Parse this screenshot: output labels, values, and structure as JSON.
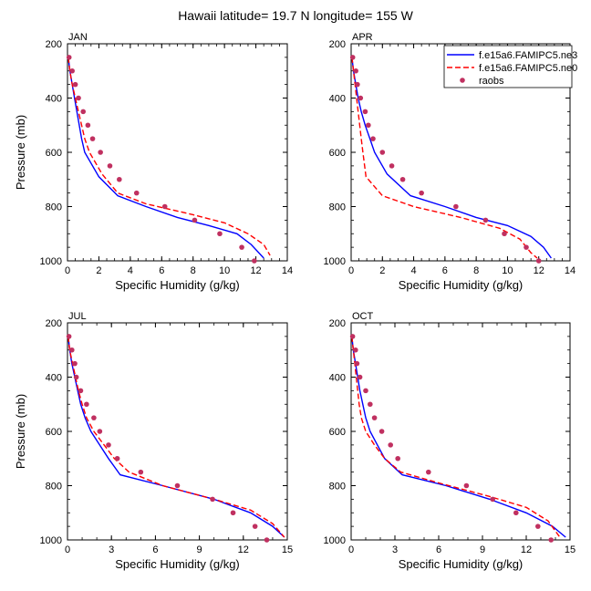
{
  "figure": {
    "title": "Hawaii  latitude= 19.7 N longitude= 155 W"
  },
  "legend": {
    "items": [
      {
        "label": "f.e15a6.FAMIPC5.ne3",
        "color": "#0000ff",
        "style": "solid"
      },
      {
        "label": "f.e15a6.FAMIPC5.ne0",
        "color": "#ff0000",
        "style": "dashed"
      },
      {
        "label": "raobs",
        "color": "#c03060",
        "style": "dot"
      }
    ]
  },
  "colors": {
    "ne3": "#0000ff",
    "ne0": "#ff0000",
    "raobs": "#c03060"
  },
  "chart_data": [
    {
      "type": "line",
      "panel": "JAN",
      "xlabel": "Specific Humidity (g/kg)",
      "ylabel": "Pressure (mb)",
      "xlim": [
        0,
        14
      ],
      "ylim": [
        200,
        1000
      ],
      "y_reversed": true,
      "xticks": [
        0,
        2,
        4,
        6,
        8,
        10,
        12,
        14
      ],
      "yticks": [
        200,
        400,
        600,
        800,
        1000
      ],
      "series": [
        {
          "name": "f.e15a6.FAMIPC5.ne3",
          "points": [
            [
              0.05,
              250
            ],
            [
              0.15,
              300
            ],
            [
              0.3,
              350
            ],
            [
              0.45,
              400
            ],
            [
              0.6,
              450
            ],
            [
              0.75,
              500
            ],
            [
              0.9,
              550
            ],
            [
              1.1,
              600
            ],
            [
              2,
              690
            ],
            [
              3.2,
              760
            ],
            [
              5,
              800
            ],
            [
              7,
              840
            ],
            [
              9,
              870
            ],
            [
              10.8,
              900
            ],
            [
              11.7,
              940
            ],
            [
              12.5,
              990
            ]
          ]
        },
        {
          "name": "f.e15a6.FAMIPC5.ne0",
          "points": [
            [
              0.05,
              250
            ],
            [
              0.15,
              300
            ],
            [
              0.3,
              350
            ],
            [
              0.5,
              400
            ],
            [
              0.7,
              450
            ],
            [
              0.9,
              500
            ],
            [
              1.1,
              550
            ],
            [
              1.4,
              600
            ],
            [
              2.2,
              680
            ],
            [
              3.2,
              750
            ],
            [
              5,
              790
            ],
            [
              8,
              830
            ],
            [
              10,
              860
            ],
            [
              11.5,
              900
            ],
            [
              12.5,
              940
            ],
            [
              12.9,
              980
            ]
          ]
        },
        {
          "name": "raobs",
          "points": [
            [
              0.1,
              250
            ],
            [
              0.3,
              300
            ],
            [
              0.5,
              350
            ],
            [
              0.7,
              400
            ],
            [
              1,
              450
            ],
            [
              1.3,
              500
            ],
            [
              1.6,
              550
            ],
            [
              2.1,
              600
            ],
            [
              2.7,
              650
            ],
            [
              3.3,
              700
            ],
            [
              4.4,
              750
            ],
            [
              6.2,
              800
            ],
            [
              8.1,
              850
            ],
            [
              9.7,
              900
            ],
            [
              11.1,
              950
            ],
            [
              11.9,
              1000
            ]
          ]
        }
      ]
    },
    {
      "type": "line",
      "panel": "APR",
      "xlabel": "Specific Humidity (g/kg)",
      "ylabel": "",
      "xlim": [
        0,
        14
      ],
      "ylim": [
        200,
        1000
      ],
      "y_reversed": true,
      "xticks": [
        0,
        2,
        4,
        6,
        8,
        10,
        12,
        14
      ],
      "yticks": [
        200,
        400,
        600,
        800,
        1000
      ],
      "series": [
        {
          "name": "f.e15a6.FAMIPC5.ne3",
          "points": [
            [
              0.05,
              250
            ],
            [
              0.15,
              300
            ],
            [
              0.3,
              350
            ],
            [
              0.45,
              400
            ],
            [
              0.65,
              450
            ],
            [
              0.9,
              500
            ],
            [
              1.2,
              550
            ],
            [
              1.5,
              600
            ],
            [
              2.3,
              680
            ],
            [
              3.8,
              760
            ],
            [
              6,
              800
            ],
            [
              8,
              840
            ],
            [
              10,
              870
            ],
            [
              11.5,
              910
            ],
            [
              12.3,
              950
            ],
            [
              12.8,
              990
            ]
          ]
        },
        {
          "name": "f.e15a6.FAMIPC5.ne0",
          "points": [
            [
              0.05,
              250
            ],
            [
              0.15,
              300
            ],
            [
              0.25,
              350
            ],
            [
              0.35,
              400
            ],
            [
              0.45,
              450
            ],
            [
              0.55,
              500
            ],
            [
              0.65,
              550
            ],
            [
              0.75,
              600
            ],
            [
              0.95,
              690
            ],
            [
              2,
              760
            ],
            [
              4,
              800
            ],
            [
              7,
              840
            ],
            [
              9.5,
              880
            ],
            [
              10.8,
              920
            ],
            [
              11.5,
              970
            ],
            [
              11.9,
              990
            ]
          ]
        },
        {
          "name": "raobs",
          "points": [
            [
              0.1,
              250
            ],
            [
              0.3,
              300
            ],
            [
              0.4,
              350
            ],
            [
              0.6,
              400
            ],
            [
              0.9,
              450
            ],
            [
              1.1,
              500
            ],
            [
              1.4,
              550
            ],
            [
              2,
              600
            ],
            [
              2.6,
              650
            ],
            [
              3.3,
              700
            ],
            [
              4.5,
              750
            ],
            [
              6.7,
              800
            ],
            [
              8.6,
              850
            ],
            [
              9.8,
              900
            ],
            [
              11.2,
              950
            ],
            [
              12,
              1000
            ]
          ]
        }
      ]
    },
    {
      "type": "line",
      "panel": "JUL",
      "xlabel": "Specific Humidity (g/kg)",
      "ylabel": "Pressure (mb)",
      "xlim": [
        0,
        15
      ],
      "ylim": [
        200,
        1000
      ],
      "y_reversed": true,
      "xticks": [
        0,
        3,
        6,
        9,
        12,
        15
      ],
      "yticks": [
        200,
        400,
        600,
        800,
        1000
      ],
      "series": [
        {
          "name": "f.e15a6.FAMIPC5.ne3",
          "points": [
            [
              0.05,
              250
            ],
            [
              0.15,
              300
            ],
            [
              0.3,
              350
            ],
            [
              0.5,
              400
            ],
            [
              0.7,
              450
            ],
            [
              0.9,
              500
            ],
            [
              1.2,
              550
            ],
            [
              1.6,
              600
            ],
            [
              2.2,
              650
            ],
            [
              2.8,
              700
            ],
            [
              3.6,
              760
            ],
            [
              6.5,
              800
            ],
            [
              10,
              850
            ],
            [
              12.5,
              900
            ],
            [
              14,
              950
            ],
            [
              14.8,
              990
            ]
          ]
        },
        {
          "name": "f.e15a6.FAMIPC5.ne0",
          "points": [
            [
              0.05,
              250
            ],
            [
              0.15,
              300
            ],
            [
              0.35,
              350
            ],
            [
              0.55,
              400
            ],
            [
              0.75,
              450
            ],
            [
              1,
              500
            ],
            [
              1.3,
              550
            ],
            [
              1.8,
              600
            ],
            [
              2.5,
              650
            ],
            [
              3.2,
              700
            ],
            [
              4.2,
              750
            ],
            [
              6.5,
              800
            ],
            [
              10,
              850
            ],
            [
              12.5,
              890
            ],
            [
              14,
              940
            ],
            [
              14.8,
              990
            ]
          ]
        },
        {
          "name": "raobs",
          "points": [
            [
              0.1,
              250
            ],
            [
              0.3,
              300
            ],
            [
              0.5,
              350
            ],
            [
              0.6,
              400
            ],
            [
              0.9,
              450
            ],
            [
              1.3,
              500
            ],
            [
              1.8,
              550
            ],
            [
              2.2,
              600
            ],
            [
              2.8,
              650
            ],
            [
              3.4,
              700
            ],
            [
              5,
              750
            ],
            [
              7.5,
              800
            ],
            [
              9.9,
              850
            ],
            [
              11.3,
              900
            ],
            [
              12.8,
              950
            ],
            [
              13.6,
              1000
            ]
          ]
        }
      ]
    },
    {
      "type": "line",
      "panel": "OCT",
      "xlabel": "Specific Humidity (g/kg)",
      "ylabel": "",
      "xlim": [
        0,
        15
      ],
      "ylim": [
        200,
        1000
      ],
      "y_reversed": true,
      "xticks": [
        0,
        3,
        6,
        9,
        12,
        15
      ],
      "yticks": [
        200,
        400,
        600,
        800,
        1000
      ],
      "series": [
        {
          "name": "f.e15a6.FAMIPC5.ne3",
          "points": [
            [
              0.05,
              250
            ],
            [
              0.15,
              300
            ],
            [
              0.3,
              350
            ],
            [
              0.45,
              400
            ],
            [
              0.6,
              450
            ],
            [
              0.8,
              500
            ],
            [
              1,
              550
            ],
            [
              1.3,
              600
            ],
            [
              1.8,
              650
            ],
            [
              2.3,
              700
            ],
            [
              3.5,
              760
            ],
            [
              6.5,
              800
            ],
            [
              9.5,
              850
            ],
            [
              12,
              900
            ],
            [
              13.8,
              950
            ],
            [
              14.7,
              990
            ]
          ]
        },
        {
          "name": "f.e15a6.FAMIPC5.ne0",
          "points": [
            [
              0.05,
              250
            ],
            [
              0.15,
              300
            ],
            [
              0.25,
              350
            ],
            [
              0.35,
              400
            ],
            [
              0.45,
              450
            ],
            [
              0.55,
              500
            ],
            [
              0.7,
              550
            ],
            [
              1,
              600
            ],
            [
              1.6,
              650
            ],
            [
              2.3,
              700
            ],
            [
              3.4,
              750
            ],
            [
              6,
              790
            ],
            [
              9.5,
              840
            ],
            [
              12,
              880
            ],
            [
              13.5,
              930
            ],
            [
              14.3,
              990
            ]
          ]
        },
        {
          "name": "raobs",
          "points": [
            [
              0.1,
              250
            ],
            [
              0.3,
              300
            ],
            [
              0.4,
              350
            ],
            [
              0.6,
              400
            ],
            [
              1,
              450
            ],
            [
              1.3,
              500
            ],
            [
              1.6,
              550
            ],
            [
              2.1,
              600
            ],
            [
              2.7,
              650
            ],
            [
              3.2,
              700
            ],
            [
              5.3,
              750
            ],
            [
              7.9,
              800
            ],
            [
              9.7,
              850
            ],
            [
              11.3,
              900
            ],
            [
              12.8,
              950
            ],
            [
              13.7,
              1000
            ]
          ]
        }
      ]
    }
  ]
}
